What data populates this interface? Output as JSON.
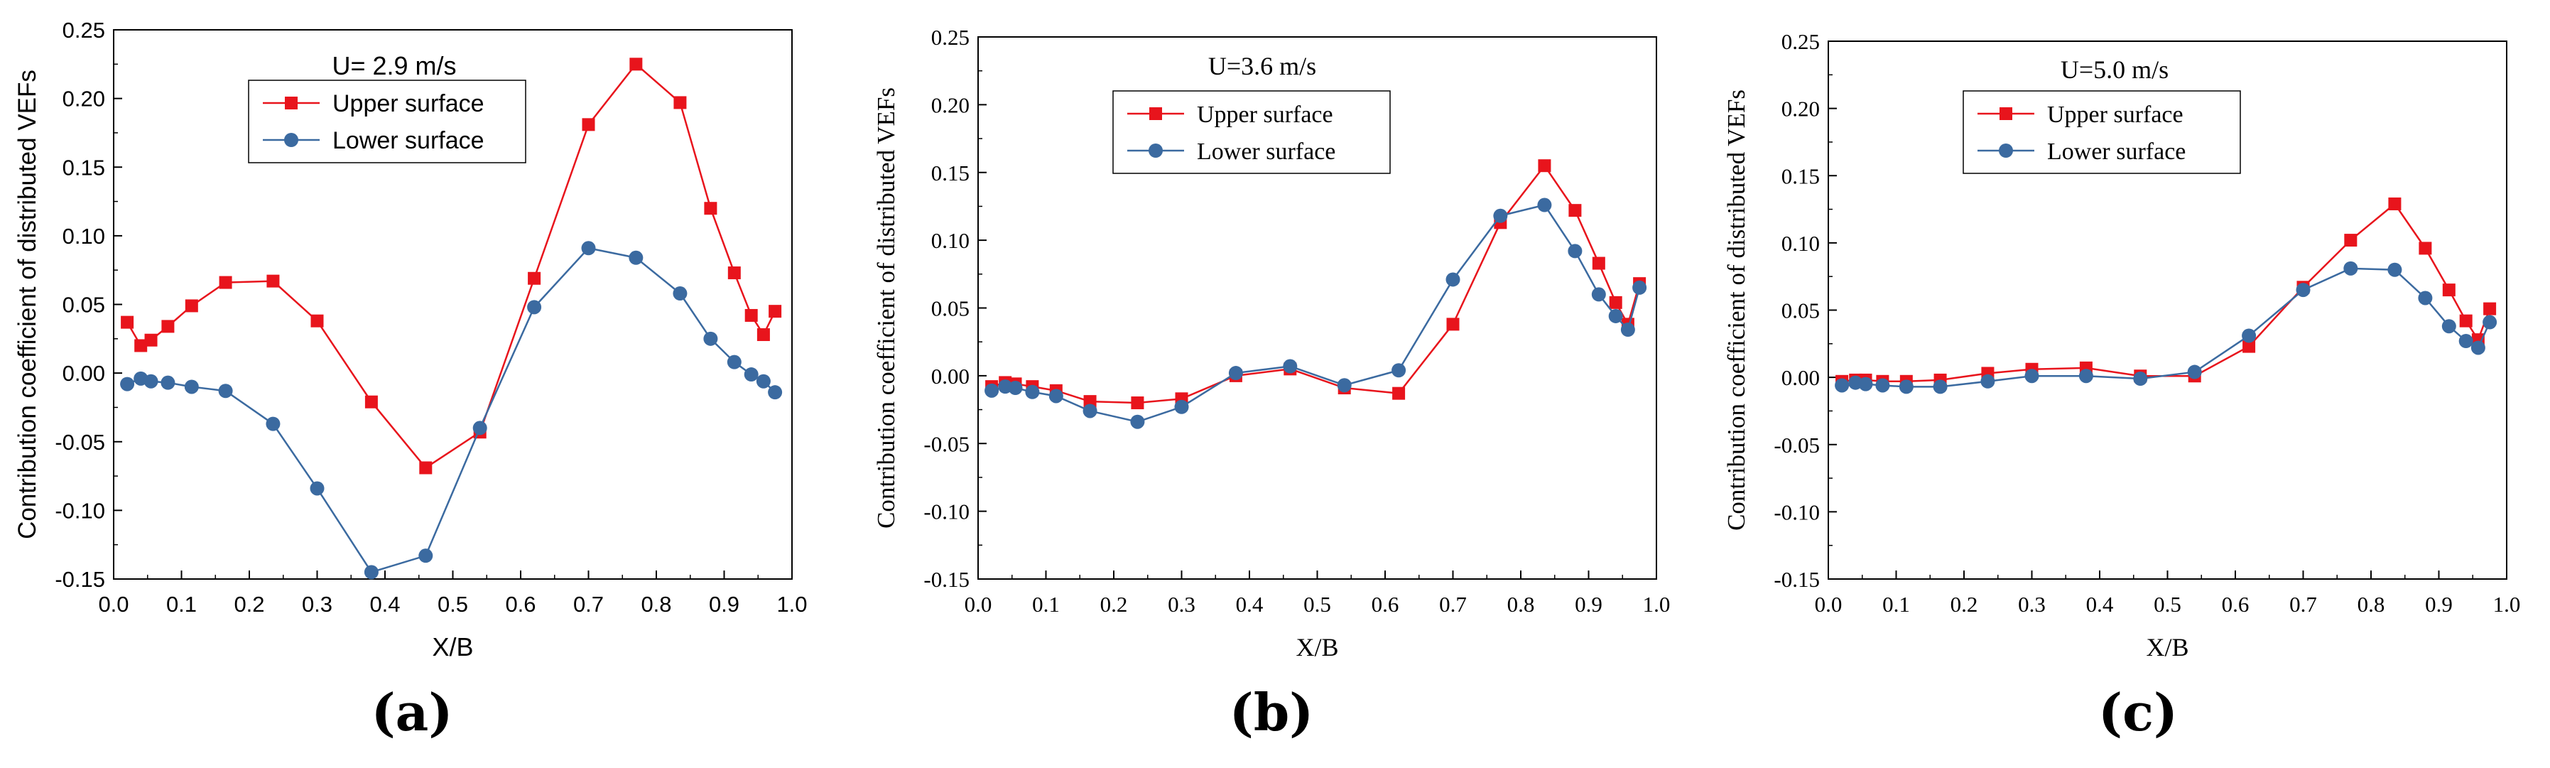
{
  "chart_data": [
    {
      "type": "line",
      "panel": "(a)",
      "panel_letter": "a",
      "font": "sans",
      "annotation": "U= 2.9 m/s",
      "xlabel": "X/B",
      "ylabel": "Contribution coefficient of distributed VEFs",
      "xlim": [
        0.0,
        1.0
      ],
      "ylim": [
        -0.15,
        0.25
      ],
      "xticks": [
        "0.0",
        "0.1",
        "0.2",
        "0.3",
        "0.4",
        "0.5",
        "0.6",
        "0.7",
        "0.8",
        "0.9",
        "1.0"
      ],
      "yticks": [
        "-0.15",
        "-0.10",
        "-0.05",
        "0.00",
        "0.05",
        "0.10",
        "0.15",
        "0.20",
        "0.25"
      ],
      "series": [
        {
          "name": "Upper surface",
          "color": "#e8141c",
          "marker": "square",
          "x": [
            0.02,
            0.04,
            0.055,
            0.08,
            0.115,
            0.165,
            0.235,
            0.3,
            0.38,
            0.46,
            0.54,
            0.62,
            0.7,
            0.77,
            0.835,
            0.88,
            0.915,
            0.94,
            0.958,
            0.975
          ],
          "y": [
            0.037,
            0.02,
            0.024,
            0.034,
            0.049,
            0.066,
            0.067,
            0.038,
            -0.021,
            -0.069,
            -0.043,
            0.069,
            0.181,
            0.225,
            0.197,
            0.12,
            0.073,
            0.042,
            0.028,
            0.045
          ]
        },
        {
          "name": "Lower surface",
          "color": "#3b6aa0",
          "marker": "circle",
          "x": [
            0.02,
            0.04,
            0.055,
            0.08,
            0.115,
            0.165,
            0.235,
            0.3,
            0.38,
            0.46,
            0.54,
            0.62,
            0.7,
            0.77,
            0.835,
            0.88,
            0.915,
            0.94,
            0.958,
            0.975
          ],
          "y": [
            -0.008,
            -0.004,
            -0.006,
            -0.007,
            -0.01,
            -0.013,
            -0.037,
            -0.084,
            -0.145,
            -0.133,
            -0.04,
            0.048,
            0.091,
            0.084,
            0.058,
            0.025,
            0.008,
            -0.001,
            -0.006,
            -0.014
          ]
        }
      ]
    },
    {
      "type": "line",
      "panel": "(b)",
      "panel_letter": "b",
      "font": "serif",
      "annotation": "U=3.6 m/s",
      "xlabel": "X/B",
      "ylabel": "Contribution coefficient of distributed VEFs",
      "xlim": [
        0.0,
        1.0
      ],
      "ylim": [
        -0.15,
        0.25
      ],
      "xticks": [
        "0.0",
        "0.1",
        "0.2",
        "0.3",
        "0.4",
        "0.5",
        "0.6",
        "0.7",
        "0.8",
        "0.9",
        "1.0"
      ],
      "yticks": [
        "-0.15",
        "-0.10",
        "-0.05",
        "0.00",
        "0.05",
        "0.10",
        "0.15",
        "0.20",
        "0.25"
      ],
      "series": [
        {
          "name": "Upper surface",
          "color": "#e8141c",
          "marker": "square",
          "x": [
            0.02,
            0.04,
            0.055,
            0.08,
            0.115,
            0.165,
            0.235,
            0.3,
            0.38,
            0.46,
            0.54,
            0.62,
            0.7,
            0.77,
            0.835,
            0.88,
            0.915,
            0.94,
            0.958,
            0.975
          ],
          "y": [
            -0.008,
            -0.005,
            -0.006,
            -0.008,
            -0.011,
            -0.019,
            -0.02,
            -0.017,
            0.0,
            0.005,
            -0.009,
            -0.013,
            0.038,
            0.113,
            0.155,
            0.122,
            0.083,
            0.054,
            0.038,
            0.068
          ]
        },
        {
          "name": "Lower surface",
          "color": "#3b6aa0",
          "marker": "circle",
          "x": [
            0.02,
            0.04,
            0.055,
            0.08,
            0.115,
            0.165,
            0.235,
            0.3,
            0.38,
            0.46,
            0.54,
            0.62,
            0.7,
            0.77,
            0.835,
            0.88,
            0.915,
            0.94,
            0.958,
            0.975
          ],
          "y": [
            -0.011,
            -0.008,
            -0.009,
            -0.012,
            -0.015,
            -0.026,
            -0.034,
            -0.023,
            0.002,
            0.007,
            -0.007,
            0.004,
            0.071,
            0.118,
            0.126,
            0.092,
            0.06,
            0.044,
            0.034,
            0.065
          ]
        }
      ]
    },
    {
      "type": "line",
      "panel": "(c)",
      "panel_letter": "c",
      "font": "serif",
      "annotation": "U=5.0 m/s",
      "xlabel": "X/B",
      "ylabel": "Contribution coefficient of distributed VEFs",
      "xlim": [
        0.0,
        1.0
      ],
      "ylim": [
        -0.15,
        0.25
      ],
      "xticks": [
        "0.0",
        "0.1",
        "0.2",
        "0.3",
        "0.4",
        "0.5",
        "0.6",
        "0.7",
        "0.8",
        "0.9",
        "1.0"
      ],
      "yticks": [
        "-0.15",
        "-0.10",
        "-0.05",
        "0.00",
        "0.05",
        "0.10",
        "0.15",
        "0.20",
        "0.25"
      ],
      "series": [
        {
          "name": "Upper surface",
          "color": "#e8141c",
          "marker": "square",
          "x": [
            0.02,
            0.04,
            0.055,
            0.08,
            0.115,
            0.165,
            0.235,
            0.3,
            0.38,
            0.46,
            0.54,
            0.62,
            0.7,
            0.77,
            0.835,
            0.88,
            0.915,
            0.94,
            0.958,
            0.975
          ],
          "y": [
            -0.003,
            -0.002,
            -0.002,
            -0.003,
            -0.003,
            -0.002,
            0.003,
            0.006,
            0.007,
            0.001,
            0.001,
            0.023,
            0.067,
            0.102,
            0.129,
            0.096,
            0.065,
            0.042,
            0.028,
            0.051
          ]
        },
        {
          "name": "Lower surface",
          "color": "#3b6aa0",
          "marker": "circle",
          "x": [
            0.02,
            0.04,
            0.055,
            0.08,
            0.115,
            0.165,
            0.235,
            0.3,
            0.38,
            0.46,
            0.54,
            0.62,
            0.7,
            0.77,
            0.835,
            0.88,
            0.915,
            0.94,
            0.958,
            0.975
          ],
          "y": [
            -0.006,
            -0.004,
            -0.005,
            -0.006,
            -0.007,
            -0.007,
            -0.003,
            0.001,
            0.001,
            -0.001,
            0.004,
            0.031,
            0.065,
            0.081,
            0.08,
            0.059,
            0.038,
            0.027,
            0.022,
            0.041
          ]
        }
      ]
    }
  ]
}
